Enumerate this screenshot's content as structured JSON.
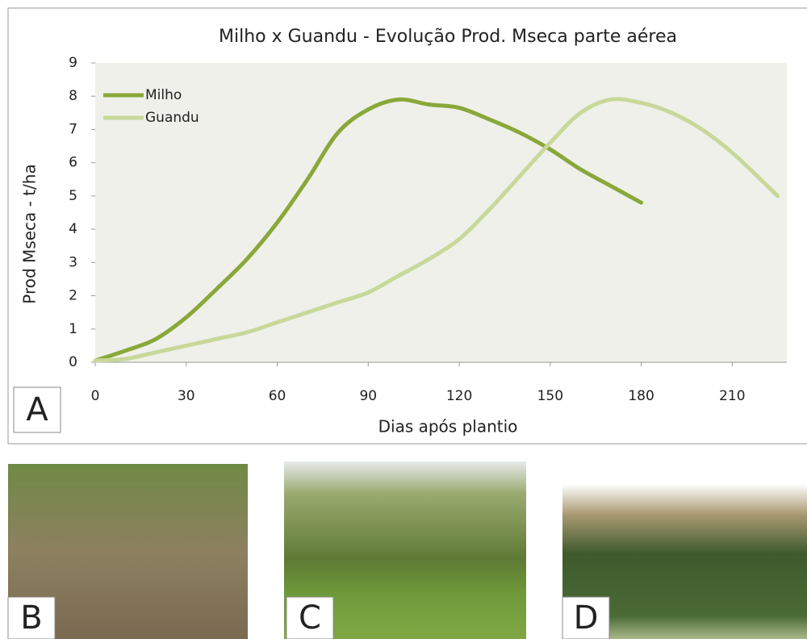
{
  "chart_data": {
    "type": "line",
    "title": "Milho x Guandu - Evolução Prod. Mseca parte aérea",
    "x_label": "Dias após plantio",
    "y_label": "Prod Mseca - t/ha",
    "x": [
      0,
      10,
      20,
      30,
      40,
      50,
      60,
      70,
      80,
      90,
      100,
      110,
      120,
      130,
      140,
      150,
      160,
      170,
      180,
      190,
      200,
      210,
      225
    ],
    "series": [
      {
        "name": "Milho",
        "color": "#8aa83a",
        "values": [
          0.05,
          0.35,
          0.7,
          1.35,
          2.2,
          3.1,
          4.2,
          5.5,
          6.9,
          7.6,
          7.9,
          7.75,
          7.65,
          7.3,
          6.9,
          6.4,
          5.8,
          5.3,
          4.8,
          null,
          null,
          null,
          null
        ]
      },
      {
        "name": "Guandu",
        "color": "#c8d89a",
        "values": [
          0.05,
          0.1,
          0.3,
          0.5,
          0.7,
          0.9,
          1.2,
          1.5,
          1.8,
          2.1,
          2.6,
          3.1,
          3.7,
          4.6,
          5.6,
          6.6,
          7.5,
          7.9,
          7.8,
          7.5,
          7.0,
          6.3,
          5.0
        ]
      }
    ],
    "xlim": [
      0,
      228
    ],
    "ylim": [
      0,
      9
    ],
    "xticks": [
      0,
      30,
      60,
      90,
      120,
      150,
      180,
      210
    ],
    "yticks": [
      0,
      1,
      2,
      3,
      4,
      5,
      6,
      7,
      8,
      9
    ],
    "legend": "upper-left"
  },
  "panels": [
    "A",
    "B",
    "C",
    "D"
  ]
}
